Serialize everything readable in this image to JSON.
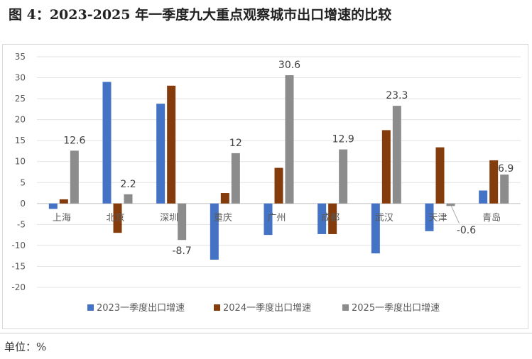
{
  "title": "图 4：2023-2025 年一季度九大重点观察城市出口增速的比较",
  "unit": "单位：%",
  "chart_data": {
    "type": "bar",
    "categories": [
      "上海",
      "北京",
      "深圳",
      "重庆",
      "广州",
      "成都",
      "武汉",
      "天津",
      "青岛"
    ],
    "series": [
      {
        "name": "2023一季度出口增速",
        "color": "#4472c4",
        "values": [
          -1.3,
          29,
          23.8,
          -13.4,
          -7.5,
          -7.3,
          -11.9,
          -6.6,
          3.1
        ]
      },
      {
        "name": "2024一季度出口增速",
        "color": "#843c0c",
        "values": [
          1,
          -7,
          28.1,
          2.5,
          8.5,
          -7.3,
          17.5,
          13.4,
          10.3
        ]
      },
      {
        "name": "2025一季度出口增速",
        "color": "#8c8c8c",
        "values": [
          12.6,
          2.2,
          -8.7,
          12,
          30.6,
          12.9,
          23.3,
          -0.6,
          6.9
        ]
      }
    ],
    "data_labels": [
      "12.6",
      "2.2",
      "-8.7",
      "12",
      "30.6",
      "12.9",
      "23.3",
      "-0.6",
      "6.9"
    ],
    "ylim": [
      -20,
      35
    ],
    "yticks": [
      35,
      30,
      25,
      20,
      15,
      10,
      5,
      0,
      -5,
      -10,
      -15,
      -20
    ],
    "grid": true,
    "legend": "bottom",
    "xlabel": "",
    "ylabel": ""
  }
}
